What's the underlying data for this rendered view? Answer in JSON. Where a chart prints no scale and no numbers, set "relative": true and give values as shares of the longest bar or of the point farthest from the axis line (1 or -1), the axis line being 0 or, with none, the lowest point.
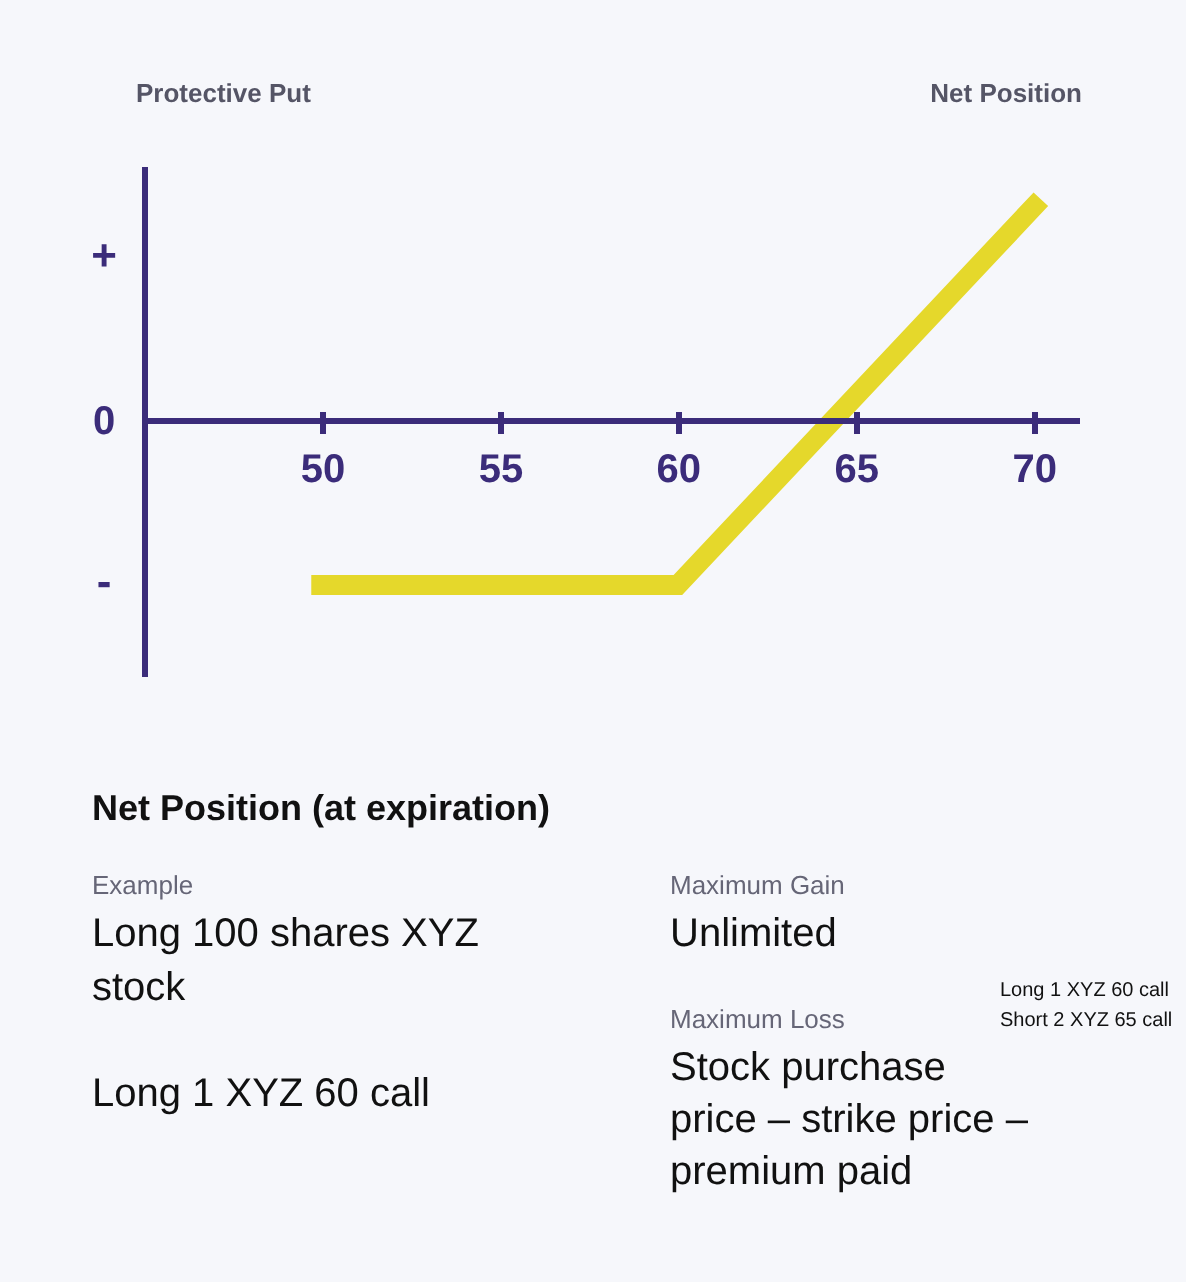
{
  "chart_data": {
    "type": "line",
    "title": "Protective Put",
    "relative": true,
    "x": [
      49.7,
      60,
      70.2
    ],
    "series": [
      {
        "name": "Net Position",
        "color": "#e5d82b",
        "values": [
          -0.74,
          -0.74,
          1
        ]
      }
    ],
    "xlim": [
      45,
      71.3
    ],
    "xticks": [
      50,
      55,
      60,
      65,
      70
    ],
    "grid": false,
    "legend": false,
    "marker": "none",
    "line_style": "solid",
    "annotations": [
      "+",
      "0",
      "-",
      "Net Position (at expiration)",
      "Example",
      "Long 100 shares XYZ\nstock",
      "Long 1 XYZ 60 call",
      "Maximum Gain",
      "Unlimited",
      "Maximum Loss",
      "Stock purchase\nprice – strike price –\npremium paid",
      "Long 1 XYZ 60 call",
      "Short 2 XYZ 65 call"
    ]
  }
}
